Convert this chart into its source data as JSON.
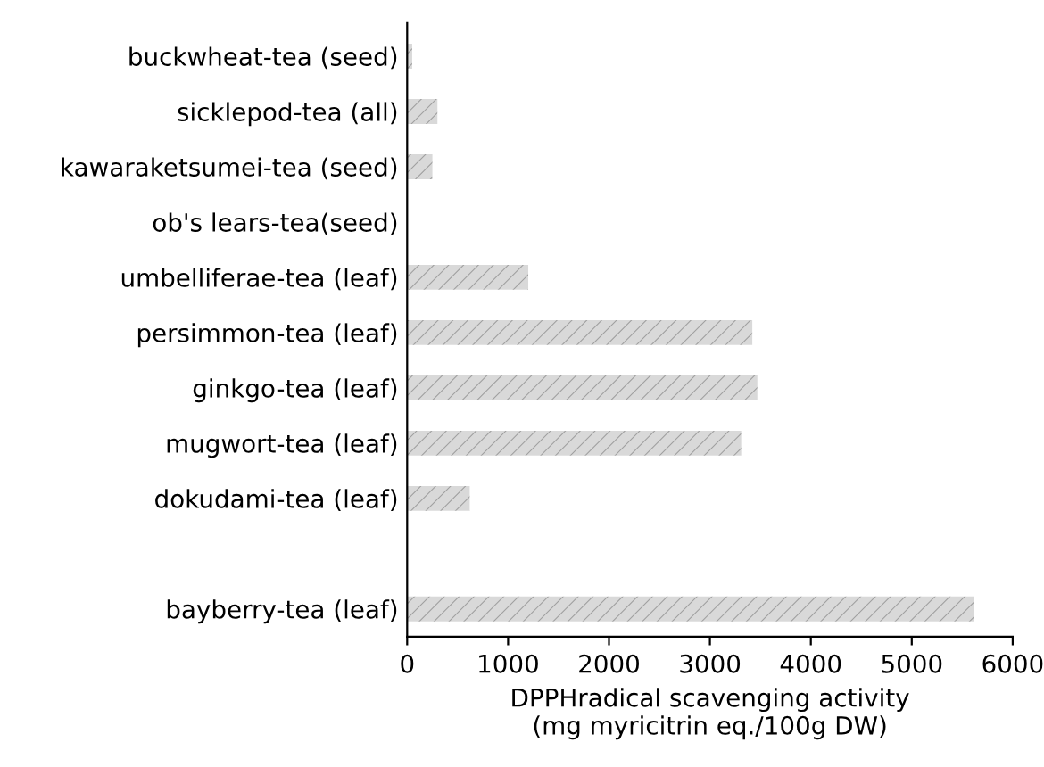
{
  "chart_data": {
    "type": "bar",
    "orientation": "horizontal",
    "categories": [
      "buckwheat-tea (seed)",
      "sicklepod-tea (all)",
      "kawaraketsumei-tea (seed)",
      "ob's lears-tea(seed)",
      "umbelliferae-tea (leaf)",
      "persimmon-tea (leaf)",
      "ginkgo-tea (leaf)",
      "mugwort-tea (leaf)",
      "dokudami-tea (leaf)",
      null,
      "bayberry-tea (leaf)"
    ],
    "values": [
      50,
      300,
      250,
      0,
      1200,
      3420,
      3470,
      3310,
      620,
      null,
      5620
    ],
    "color": "#d9d9d9",
    "xlabel": "DPPHradical scavenging activity\n(mg myricitrin eq./100g DW)",
    "xlim": [
      0,
      6000
    ],
    "xticks": [
      0,
      1000,
      2000,
      3000,
      4000,
      5000,
      6000
    ],
    "grid": false
  }
}
